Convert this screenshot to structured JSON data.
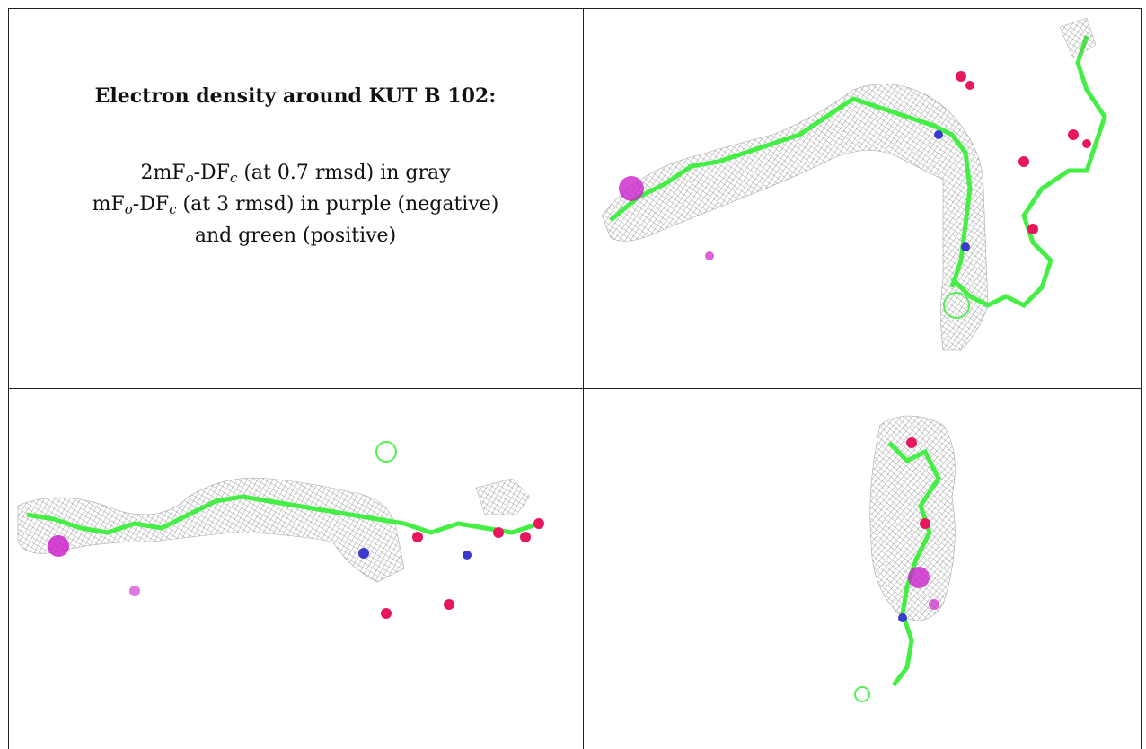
{
  "caption": {
    "title": "Electron density around KUT B 102:",
    "line1_pre": "2mF",
    "line1_sub1": "o",
    "line1_mid": "-DF",
    "line1_sub2": "c",
    "line1_post": " (at 0.7 rmsd) in gray",
    "line2_pre": "mF",
    "line2_sub1": "o",
    "line2_mid": "-DF",
    "line2_sub2": "c",
    "line2_post": " (at 3 rmsd) in purple (negative)",
    "line3": "and green (positive)"
  },
  "colors": {
    "mesh_gray": "#9a9a9a",
    "carbon_green": "#44ee44",
    "oxygen_red": "#e8175d",
    "nitrogen_blue": "#3a3acc",
    "hydrogen_white": "#e6e6e6",
    "negative_purple": "#cc22cc",
    "positive_green": "#55ee55"
  },
  "panels": [
    {
      "name": "view-top-right",
      "icon": "electron-density-map-icon"
    },
    {
      "name": "view-bottom-left",
      "icon": "electron-density-map-icon"
    },
    {
      "name": "view-bottom-right",
      "icon": "electron-density-map-icon"
    }
  ]
}
